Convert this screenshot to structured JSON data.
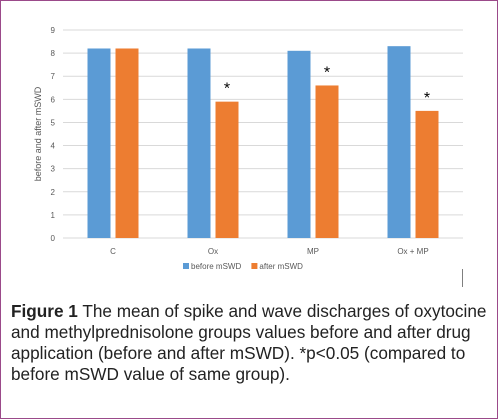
{
  "chart_data": {
    "type": "bar",
    "title": "",
    "ylabel": "before and after mSWD",
    "xlabel": "",
    "ylim": [
      0,
      9
    ],
    "yticks": [
      0,
      1,
      2,
      3,
      4,
      5,
      6,
      7,
      8,
      9
    ],
    "grid": true,
    "legend_position": "bottom",
    "categories": [
      "C",
      "Ox",
      "MP",
      "Ox + MP"
    ],
    "series": [
      {
        "name": "before mSWD",
        "color": "#5b9bd5",
        "values": [
          8.2,
          8.2,
          8.1,
          8.3
        ]
      },
      {
        "name": "after mSWD",
        "color": "#ed7d31",
        "values": [
          8.2,
          5.9,
          6.6,
          5.5
        ]
      }
    ],
    "annotations": [
      {
        "series": 1,
        "category": 1,
        "text": "*"
      },
      {
        "series": 1,
        "category": 2,
        "text": "*"
      },
      {
        "series": 1,
        "category": 3,
        "text": "*"
      }
    ]
  },
  "caption": {
    "label": "Figure 1",
    "text": " The mean of spike and wave discharges of oxytocine and methylprednisolone groups values before and after drug application (before and after mSWD). *p<0.05 (compared to before mSWD value of same group)."
  }
}
